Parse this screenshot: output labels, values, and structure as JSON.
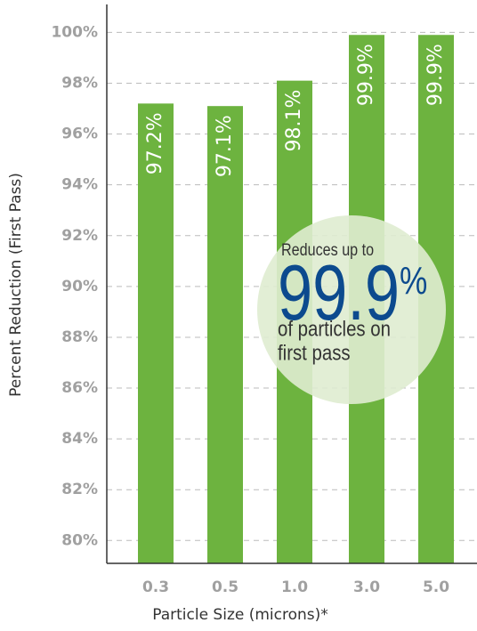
{
  "chart_data": {
    "type": "bar",
    "x_label": "Particle Size (microns)*",
    "y_label": "Percent Reduction (First Pass)",
    "categories": [
      "0.3",
      "0.5",
      "1.0",
      "3.0",
      "5.0"
    ],
    "values": [
      97.2,
      97.1,
      98.1,
      99.9,
      99.9
    ],
    "value_labels": [
      "97.2%",
      "97.1%",
      "98.1%",
      "99.9%",
      "99.9%"
    ],
    "color": "#6db33f",
    "ylim": [
      79.1,
      101.1
    ],
    "yticks": [
      {
        "value": 80,
        "label": "80%"
      },
      {
        "value": 82,
        "label": "82%"
      },
      {
        "value": 84,
        "label": "84%"
      },
      {
        "value": 86,
        "label": "86%"
      },
      {
        "value": 88,
        "label": "88%"
      },
      {
        "value": 90,
        "label": "90%"
      },
      {
        "value": 92,
        "label": "92%"
      },
      {
        "value": 94,
        "label": "94%"
      },
      {
        "value": 96,
        "label": "96%"
      },
      {
        "value": 98,
        "label": "98%"
      },
      {
        "value": 100,
        "label": "100%"
      }
    ],
    "grid": true,
    "annotation": {
      "intro": "Reduces up to",
      "highlight": "99.9",
      "unit": "%",
      "lines": [
        "of particles on",
        "first pass"
      ]
    }
  }
}
